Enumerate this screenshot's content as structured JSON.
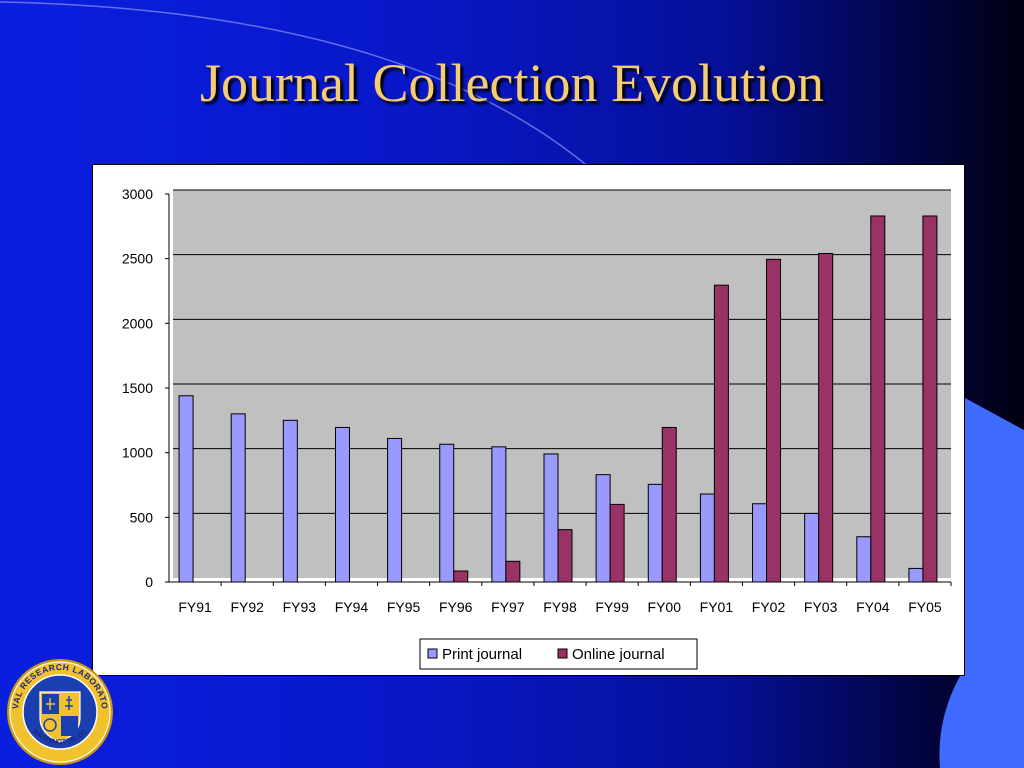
{
  "slide": {
    "title": "Journal Collection Evolution",
    "logo": {
      "ring_text": "NAVAL RESEARCH LABORATORY",
      "bottom_text": "WASHINGTON, DC"
    }
  },
  "colors": {
    "print": "#9999ff",
    "online": "#993366",
    "plot_bg": "#c0c0c0",
    "title": "#f6cc72"
  },
  "chart_data": {
    "type": "bar",
    "title": "",
    "xlabel": "",
    "ylabel": "",
    "ylim": [
      0,
      3000
    ],
    "yticks": [
      0,
      500,
      1000,
      1500,
      2000,
      2500,
      3000
    ],
    "grid": true,
    "legend_position": "bottom",
    "categories": [
      "FY91",
      "FY92",
      "FY93",
      "FY94",
      "FY95",
      "FY96",
      "FY97",
      "FY98",
      "FY99",
      "FY00",
      "FY01",
      "FY02",
      "FY03",
      "FY04",
      "FY05"
    ],
    "series": [
      {
        "name": "Print journal",
        "color": "#9999ff",
        "values": [
          1440,
          1300,
          1250,
          1195,
          1110,
          1065,
          1045,
          990,
          830,
          755,
          680,
          605,
          530,
          350,
          105
        ]
      },
      {
        "name": "Online journal",
        "color": "#993366",
        "values": [
          0,
          0,
          0,
          0,
          0,
          85,
          160,
          405,
          600,
          1195,
          2295,
          2495,
          2540,
          2830,
          2830
        ]
      }
    ]
  }
}
